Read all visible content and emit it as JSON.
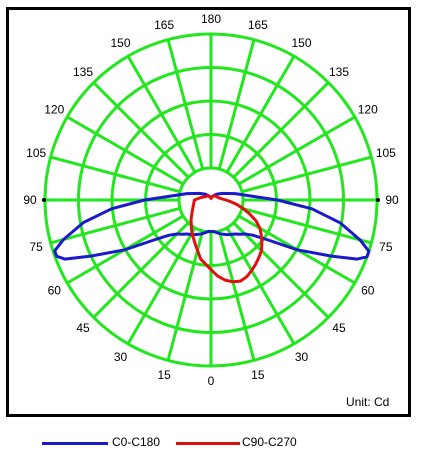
{
  "chart_data": {
    "type": "polar",
    "unit_label": "Unit: Cd",
    "grid_color": "#22e61e",
    "angular_ticks": [
      "180",
      "165",
      "150",
      "135",
      "120",
      "105",
      "90",
      "75",
      "60",
      "45",
      "30",
      "15",
      "0",
      "15",
      "30",
      "45",
      "60",
      "75",
      "90",
      "105",
      "120",
      "135",
      "150",
      "165"
    ],
    "angle_label_deg": [
      180,
      165,
      150,
      135,
      120,
      105,
      90,
      75,
      60,
      45,
      30,
      15,
      0,
      -15,
      -30,
      -45,
      -60,
      -75,
      -90,
      -105,
      -120,
      -135,
      -150,
      -165
    ],
    "radial_rings": 5,
    "rmax": 1.0,
    "series": [
      {
        "name": "C0-C180",
        "color": "#1a1acc",
        "points": [
          [
            -180,
            0.01
          ],
          [
            -165,
            0.02
          ],
          [
            -150,
            0.03
          ],
          [
            -135,
            0.05
          ],
          [
            -120,
            0.08
          ],
          [
            -105,
            0.15
          ],
          [
            -90,
            0.4
          ],
          [
            -85,
            0.6
          ],
          [
            -80,
            0.78
          ],
          [
            -75,
            0.92
          ],
          [
            -72,
            0.99
          ],
          [
            -70,
            0.99
          ],
          [
            -68,
            0.95
          ],
          [
            -65,
            0.8
          ],
          [
            -60,
            0.6
          ],
          [
            -55,
            0.42
          ],
          [
            -50,
            0.33
          ],
          [
            -45,
            0.29
          ],
          [
            -40,
            0.27
          ],
          [
            -35,
            0.25
          ],
          [
            -30,
            0.24
          ],
          [
            -25,
            0.23
          ],
          [
            -20,
            0.22
          ],
          [
            -15,
            0.21
          ],
          [
            -10,
            0.2
          ],
          [
            -5,
            0.19
          ],
          [
            0,
            0.19
          ],
          [
            5,
            0.19
          ],
          [
            10,
            0.2
          ],
          [
            15,
            0.21
          ],
          [
            20,
            0.22
          ],
          [
            25,
            0.23
          ],
          [
            30,
            0.24
          ],
          [
            35,
            0.25
          ],
          [
            40,
            0.27
          ],
          [
            45,
            0.29
          ],
          [
            50,
            0.33
          ],
          [
            55,
            0.42
          ],
          [
            60,
            0.6
          ],
          [
            65,
            0.8
          ],
          [
            68,
            0.95
          ],
          [
            70,
            1.0
          ],
          [
            72,
            1.0
          ],
          [
            75,
            0.93
          ],
          [
            80,
            0.79
          ],
          [
            85,
            0.61
          ],
          [
            90,
            0.4
          ],
          [
            105,
            0.15
          ],
          [
            120,
            0.08
          ],
          [
            135,
            0.05
          ],
          [
            150,
            0.03
          ],
          [
            165,
            0.02
          ],
          [
            180,
            0.01
          ]
        ]
      },
      {
        "name": "C90-C270",
        "color": "#e01010",
        "points": [
          [
            -180,
            0.01
          ],
          [
            -150,
            0.03
          ],
          [
            -120,
            0.04
          ],
          [
            -105,
            0.06
          ],
          [
            -90,
            0.1
          ],
          [
            -60,
            0.13
          ],
          [
            -45,
            0.17
          ],
          [
            -30,
            0.23
          ],
          [
            -20,
            0.28
          ],
          [
            -10,
            0.36
          ],
          [
            0,
            0.42
          ],
          [
            5,
            0.46
          ],
          [
            10,
            0.49
          ],
          [
            15,
            0.51
          ],
          [
            20,
            0.52
          ],
          [
            25,
            0.51
          ],
          [
            30,
            0.49
          ],
          [
            35,
            0.47
          ],
          [
            40,
            0.45
          ],
          [
            45,
            0.43
          ],
          [
            50,
            0.4
          ],
          [
            55,
            0.37
          ],
          [
            60,
            0.34
          ],
          [
            65,
            0.3
          ],
          [
            70,
            0.25
          ],
          [
            75,
            0.2
          ],
          [
            80,
            0.16
          ],
          [
            85,
            0.12
          ],
          [
            90,
            0.09
          ],
          [
            105,
            0.05
          ],
          [
            120,
            0.04
          ],
          [
            150,
            0.03
          ],
          [
            180,
            0.01
          ]
        ]
      }
    ]
  }
}
